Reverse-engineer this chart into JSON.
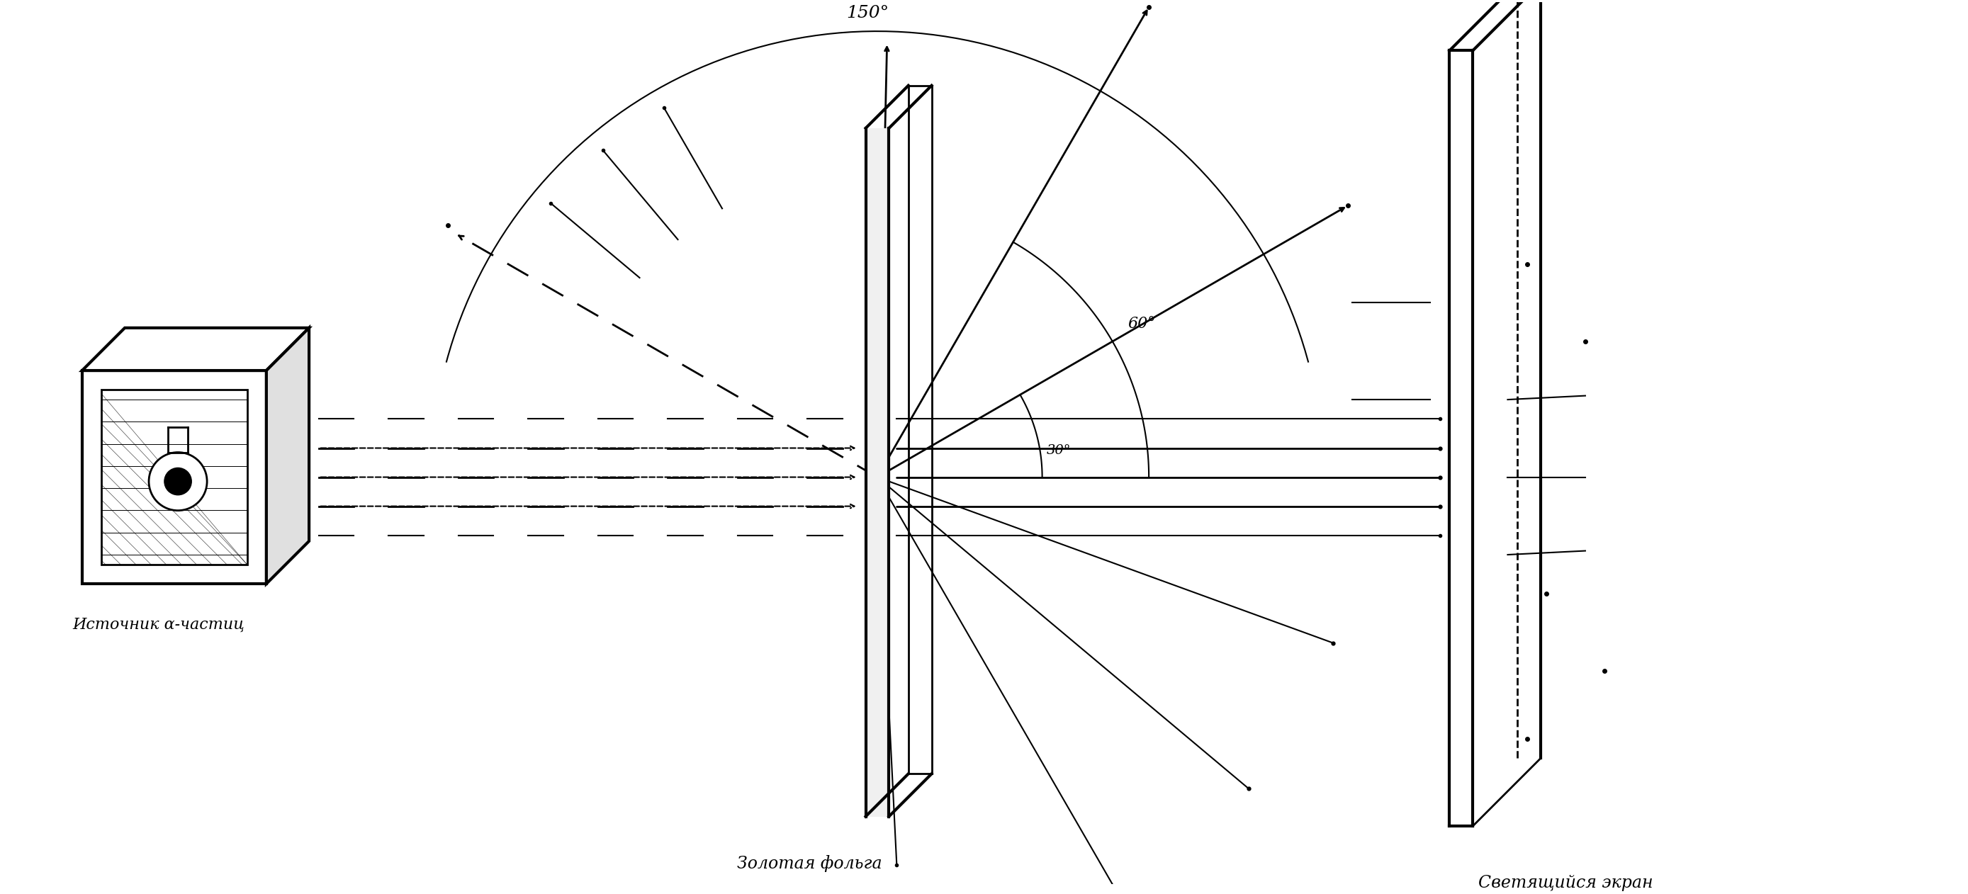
{
  "bg_color": "#ffffff",
  "line_color": "#000000",
  "fig_width": 27.77,
  "fig_height": 12.62,
  "label_source": "Источник α-частиц",
  "label_foil": "Золотая фольга",
  "label_screen": "Светящийся экран",
  "angle_150": "150°",
  "angle_60": "60°",
  "angle_30": "30°"
}
